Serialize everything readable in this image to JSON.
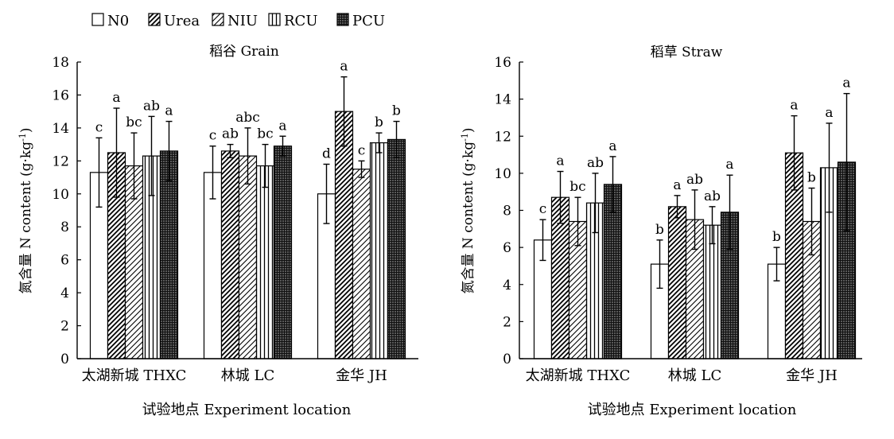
{
  "legend": {
    "items": [
      {
        "label": "N0",
        "pattern": "white"
      },
      {
        "label": "Urea",
        "pattern": "diag-dense"
      },
      {
        "label": "NIU",
        "pattern": "diag-sparse"
      },
      {
        "label": "RCU",
        "pattern": "vertical"
      },
      {
        "label": "PCU",
        "pattern": "grid-dark"
      }
    ]
  },
  "chart_data": [
    {
      "type": "bar",
      "title": "稻谷 Grain",
      "xlabel": "试验地点 Experiment location",
      "ylabel_main": "氮含量 N content (g·kg",
      "ylabel_sup": "-1",
      "ylabel_end": ")",
      "ylim": [
        0,
        18
      ],
      "yticks": [
        0,
        2,
        4,
        6,
        8,
        10,
        12,
        14,
        16,
        18
      ],
      "categories": [
        "太湖新城 THXC",
        "林城 LC",
        "金华 JH"
      ],
      "series": [
        {
          "name": "N0",
          "values": [
            11.3,
            11.3,
            10.0
          ],
          "errors": [
            2.1,
            1.6,
            1.8
          ],
          "letters": [
            "c",
            "c",
            "d"
          ]
        },
        {
          "name": "Urea",
          "values": [
            12.5,
            12.6,
            15.0
          ],
          "errors": [
            2.7,
            0.4,
            2.1
          ],
          "letters": [
            "a",
            "ab",
            "a"
          ]
        },
        {
          "name": "NIU",
          "values": [
            11.7,
            12.3,
            11.5
          ],
          "errors": [
            2.0,
            1.7,
            0.5
          ],
          "letters": [
            "bc",
            "abc",
            "c"
          ]
        },
        {
          "name": "RCU",
          "values": [
            12.3,
            11.7,
            13.1
          ],
          "errors": [
            2.4,
            1.3,
            0.6
          ],
          "letters": [
            "ab",
            "bc",
            "b"
          ]
        },
        {
          "name": "PCU",
          "values": [
            12.6,
            12.9,
            13.3
          ],
          "errors": [
            1.8,
            0.6,
            1.1
          ],
          "letters": [
            "a",
            "a",
            "b"
          ]
        }
      ]
    },
    {
      "type": "bar",
      "title": "稻草 Straw",
      "xlabel": "试验地点 Experiment location",
      "ylabel_main": "氮含量 N content (g·kg",
      "ylabel_sup": "-1",
      "ylabel_end": ")",
      "ylim": [
        0,
        16
      ],
      "yticks": [
        0,
        2,
        4,
        6,
        8,
        10,
        12,
        14,
        16
      ],
      "categories": [
        "太湖新城 THXC",
        "林城 LC",
        "金华 JH"
      ],
      "series": [
        {
          "name": "N0",
          "values": [
            6.4,
            5.1,
            5.1
          ],
          "errors": [
            1.1,
            1.3,
            0.9
          ],
          "letters": [
            "c",
            "b",
            "b"
          ]
        },
        {
          "name": "Urea",
          "values": [
            8.7,
            8.2,
            11.1
          ],
          "errors": [
            1.4,
            0.6,
            2.0
          ],
          "letters": [
            "a",
            "a",
            "a"
          ]
        },
        {
          "name": "NIU",
          "values": [
            7.4,
            7.5,
            7.4
          ],
          "errors": [
            1.3,
            1.6,
            1.8
          ],
          "letters": [
            "bc",
            "ab",
            "b"
          ]
        },
        {
          "name": "RCU",
          "values": [
            8.4,
            7.2,
            10.3
          ],
          "errors": [
            1.6,
            1.0,
            2.4
          ],
          "letters": [
            "ab",
            "ab",
            "a"
          ]
        },
        {
          "name": "PCU",
          "values": [
            9.4,
            7.9,
            10.6
          ],
          "errors": [
            1.5,
            2.0,
            3.7
          ],
          "letters": [
            "a",
            "a",
            "a"
          ]
        }
      ]
    }
  ]
}
